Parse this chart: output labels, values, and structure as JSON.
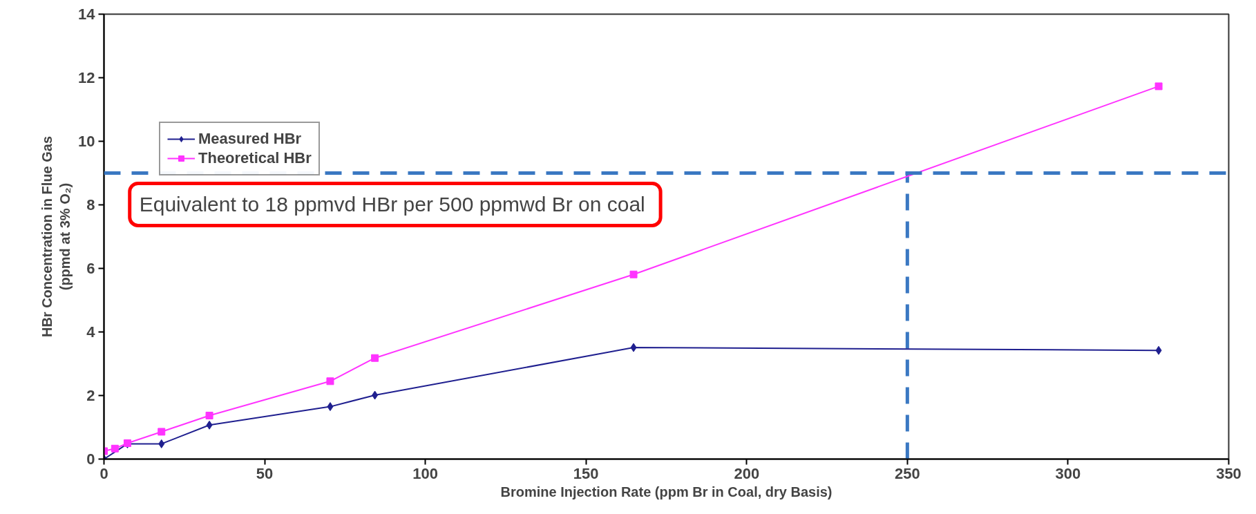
{
  "chart_data": {
    "type": "line",
    "xlabel": "Bromine Injection Rate (ppm Br in Coal, dry Basis)",
    "ylabel": "HBr Concentration in Flue Gas\n(ppmd at 3% O₂)",
    "xlim": [
      0,
      350
    ],
    "xticks": [
      0,
      50,
      100,
      150,
      200,
      250,
      300,
      350
    ],
    "ylim": [
      0,
      14
    ],
    "yticks": [
      0,
      2,
      4,
      6,
      8,
      10,
      12,
      14
    ],
    "grid": false,
    "legend": "top left",
    "series": [
      {
        "name": "Measured HBr",
        "color": "#1f1f8f",
        "marker": "diamond",
        "x": [
          0,
          7.3,
          17.9,
          32.8,
          70.4,
          84.3,
          164.8,
          328.2
        ],
        "values": [
          0,
          0.48,
          0.48,
          1.07,
          1.65,
          2.01,
          3.51,
          3.42
        ]
      },
      {
        "name": "Theoretical HBr",
        "color": "#ff33ff",
        "marker": "square",
        "x": [
          0,
          3.4,
          7.3,
          17.9,
          32.8,
          70.4,
          84.3,
          164.8,
          328.2
        ],
        "values": [
          0.25,
          0.33,
          0.5,
          0.86,
          1.37,
          2.45,
          3.18,
          5.81,
          11.73
        ]
      }
    ],
    "ref_lines": [
      {
        "axis": "y",
        "value": 9,
        "color": "#3a78c2",
        "line_style": "dashed"
      },
      {
        "axis": "x",
        "value": 250,
        "color": "#3a78c2",
        "line_style": "dashed"
      }
    ],
    "annotations": [
      "Equivalent to 18 ppmvd HBr per 500  ppmwd Br on coal"
    ]
  }
}
